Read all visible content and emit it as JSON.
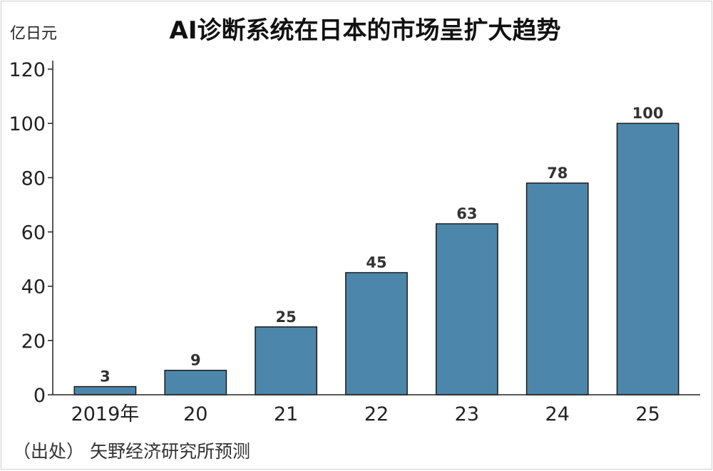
{
  "chart_data": {
    "type": "bar",
    "title": "AI诊断系统在日本的市场呈扩大趋势",
    "ylabel": "亿日元",
    "categories": [
      "2019年",
      "20",
      "21",
      "22",
      "23",
      "24",
      "25"
    ],
    "values": [
      3,
      9,
      25,
      45,
      63,
      78,
      100
    ],
    "data_labels": [
      "3",
      "9",
      "25",
      "45",
      "63",
      "78",
      "100"
    ],
    "ylim": [
      0,
      120
    ],
    "yticks": [
      0,
      20,
      40,
      60,
      80,
      100,
      120
    ],
    "ytick_labels": [
      "0",
      "20",
      "40",
      "60",
      "80",
      "100",
      "120"
    ],
    "grid": false,
    "bar_color": "#4d86ab",
    "source": "（出处） 矢野经济研究所预测"
  }
}
